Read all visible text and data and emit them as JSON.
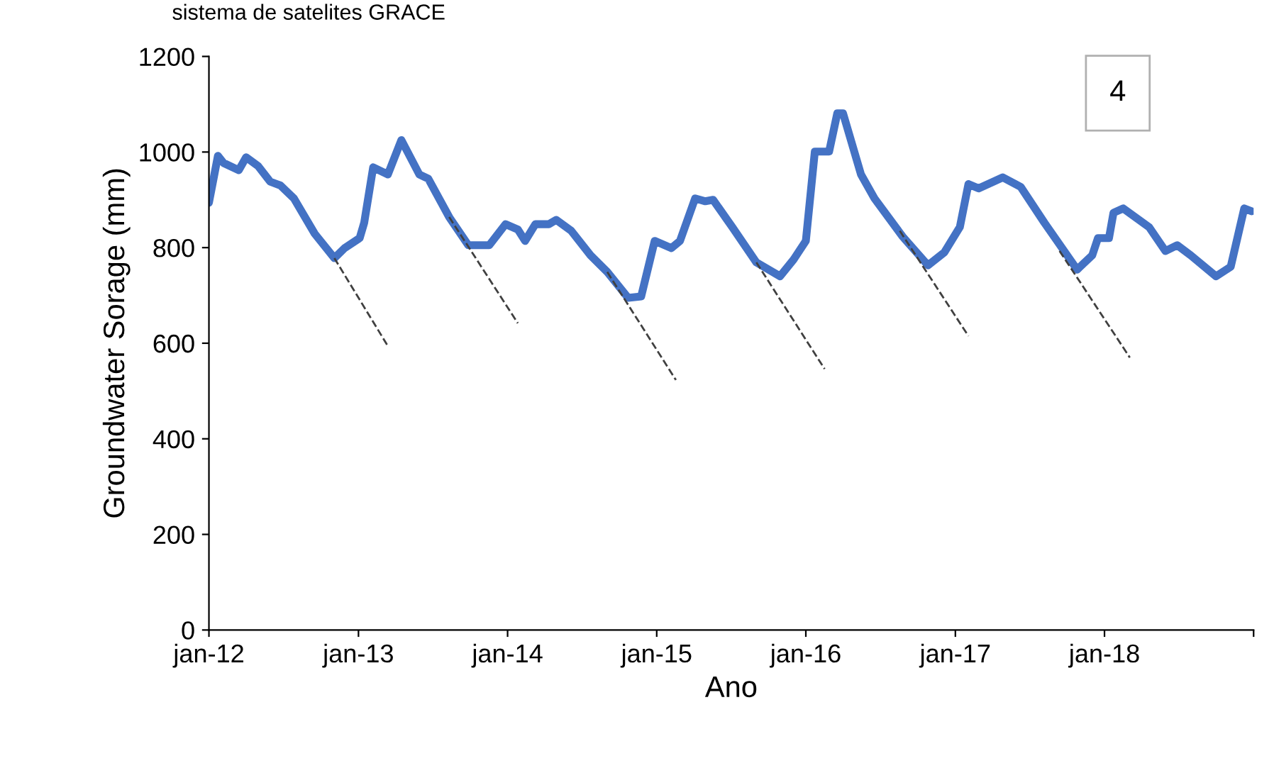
{
  "chart_data": {
    "type": "line",
    "xlabel": "Ano",
    "ylabel": "Groundwater Sorage (mm)",
    "annotations": [
      "sistema de satelites GRACE",
      "4"
    ],
    "xlim": [
      "2012-01-01",
      "2019-01-01"
    ],
    "ylim": [
      0,
      1200
    ],
    "xticks": [
      {
        "value": "2012-01-01",
        "label": "jan-12"
      },
      {
        "value": "2013-01-01",
        "label": "jan-13"
      },
      {
        "value": "2014-01-01",
        "label": "jan-14"
      },
      {
        "value": "2015-01-01",
        "label": "jan-15"
      },
      {
        "value": "2016-01-01",
        "label": "jan-16"
      },
      {
        "value": "2017-01-01",
        "label": "jan-17"
      },
      {
        "value": "2018-01-01",
        "label": "jan-18"
      },
      {
        "value": "2019-01-01",
        "label": null
      }
    ],
    "yticks": [
      0,
      200,
      400,
      600,
      800,
      1000,
      1200
    ],
    "grid": false,
    "legend": false,
    "series": [
      {
        "color": "#4472c4",
        "line_style": "solid",
        "x": [
          "2012-01-01",
          "2012-01-23",
          "2012-02-06",
          "2012-03-14",
          "2012-04-01",
          "2012-04-30",
          "2012-05-30",
          "2012-06-24",
          "2012-07-27",
          "2012-09-16",
          "2012-11-03",
          "2012-11-28",
          "2013-01-04",
          "2013-01-15",
          "2013-02-06",
          "2013-03-14",
          "2013-04-16",
          "2013-05-30",
          "2013-06-21",
          "2013-08-11",
          "2013-09-27",
          "2013-11-17",
          "2013-12-27",
          "2014-01-26",
          "2014-02-13",
          "2014-03-10",
          "2014-04-12",
          "2014-04-30",
          "2014-06-06",
          "2014-07-23",
          "2014-09-02",
          "2014-10-23",
          "2014-11-24",
          "2014-12-27",
          "2015-02-06",
          "2015-02-27",
          "2015-04-05",
          "2015-04-30",
          "2015-05-19",
          "2015-07-05",
          "2015-09-02",
          "2015-10-30",
          "2015-12-02",
          "2016-01-01",
          "2016-01-23",
          "2016-02-27",
          "2016-03-18",
          "2016-04-01",
          "2016-05-15",
          "2016-06-17",
          "2016-08-25",
          "2016-10-26",
          "2016-12-05",
          "2017-01-12",
          "2017-02-02",
          "2017-02-27",
          "2017-04-27",
          "2017-06-10",
          "2017-08-07",
          "2017-10-26",
          "2017-12-02",
          "2017-12-16",
          "2018-01-12",
          "2018-01-23",
          "2018-02-16",
          "2018-04-20",
          "2018-05-30",
          "2018-06-28",
          "2018-07-31",
          "2018-10-01",
          "2018-11-06",
          "2018-12-09",
          "2018-12-27"
        ],
        "values": [
          894,
          992,
          977,
          962,
          989,
          971,
          938,
          930,
          903,
          829,
          778,
          799,
          820,
          852,
          968,
          953,
          1025,
          953,
          944,
          864,
          805,
          805,
          849,
          838,
          814,
          849,
          849,
          858,
          835,
          784,
          749,
          695,
          698,
          814,
          799,
          814,
          903,
          897,
          900,
          843,
          769,
          740,
          775,
          814,
          1001,
          1001,
          1081,
          1081,
          953,
          903,
          823,
          763,
          790,
          843,
          933,
          924,
          947,
          927,
          852,
          754,
          784,
          820,
          820,
          873,
          882,
          843,
          793,
          805,
          784,
          740,
          760,
          882,
          876
        ]
      },
      {
        "color": "#404040",
        "line_style": "dashed",
        "x": [
          "2012-11-03",
          "2013-03-14"
        ],
        "values": [
          778,
          594
        ]
      },
      {
        "color": "#404040",
        "line_style": "dashed",
        "x": [
          "2013-08-11",
          "2014-01-26"
        ],
        "values": [
          864,
          642
        ]
      },
      {
        "color": "#404040",
        "line_style": "dashed",
        "x": [
          "2014-09-02",
          "2015-02-17"
        ],
        "values": [
          749,
          523
        ]
      },
      {
        "color": "#404040",
        "line_style": "dashed",
        "x": [
          "2015-09-02",
          "2016-02-16"
        ],
        "values": [
          769,
          546
        ]
      },
      {
        "color": "#404040",
        "line_style": "dashed",
        "x": [
          "2016-08-18",
          "2017-02-02"
        ],
        "values": [
          835,
          615
        ]
      },
      {
        "color": "#404040",
        "line_style": "dashed",
        "x": [
          "2017-09-13",
          "2018-03-04"
        ],
        "values": [
          793,
          570
        ]
      }
    ]
  }
}
